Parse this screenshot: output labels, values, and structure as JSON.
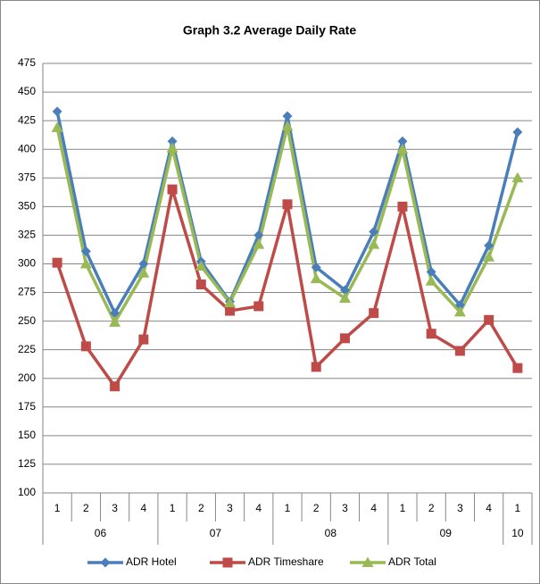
{
  "chart_data": {
    "type": "line",
    "title": "Graph 3.2 Average Daily Rate",
    "groups": [
      {
        "label": "06",
        "categories": [
          "1",
          "2",
          "3",
          "4"
        ]
      },
      {
        "label": "07",
        "categories": [
          "1",
          "2",
          "3",
          "4"
        ]
      },
      {
        "label": "08",
        "categories": [
          "1",
          "2",
          "3",
          "4"
        ]
      },
      {
        "label": "09",
        "categories": [
          "1",
          "2",
          "3",
          "4"
        ]
      },
      {
        "label": "10",
        "categories": [
          "1"
        ]
      }
    ],
    "series": [
      {
        "name": "ADR Hotel",
        "color": "#4a7ebb",
        "marker": "diamond",
        "values": [
          433,
          311,
          257,
          300,
          407,
          302,
          267,
          325,
          429,
          297,
          277,
          328,
          407,
          293,
          264,
          316,
          415
        ]
      },
      {
        "name": "ADR Timeshare",
        "color": "#be4b48",
        "marker": "square",
        "values": [
          301,
          228,
          193,
          234,
          365,
          282,
          259,
          263,
          352,
          210,
          235,
          257,
          350,
          239,
          224,
          251,
          209
        ]
      },
      {
        "name": "ADR Total",
        "color": "#98b954",
        "marker": "triangle",
        "values": [
          419,
          300,
          249,
          292,
          401,
          298,
          266,
          317,
          420,
          287,
          270,
          317,
          400,
          285,
          258,
          306,
          375
        ]
      }
    ],
    "ylim": [
      100,
      475
    ],
    "yticks": [
      100,
      125,
      150,
      175,
      200,
      225,
      250,
      275,
      300,
      325,
      350,
      375,
      400,
      425,
      450,
      475
    ],
    "grid": true,
    "legend": "bottom"
  }
}
